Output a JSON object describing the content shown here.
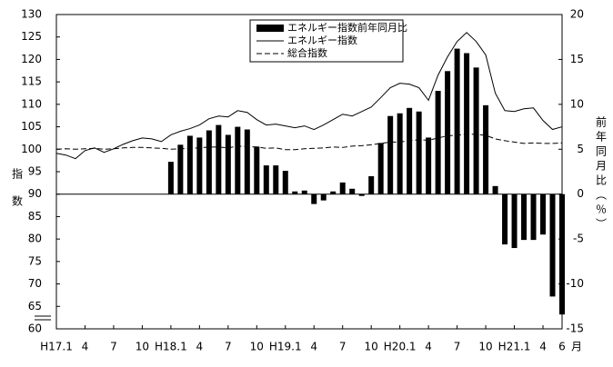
{
  "chart_data": {
    "type": "bar-line",
    "y_label": "指数",
    "y2_label": "前年同月比（％）",
    "x_unit": "月",
    "categories": [
      "H17.1",
      null,
      null,
      "4",
      null,
      null,
      "7",
      null,
      null,
      "10",
      null,
      null,
      "H18.1",
      null,
      null,
      "4",
      null,
      null,
      "7",
      null,
      null,
      "10",
      null,
      null,
      "H19.1",
      null,
      null,
      "4",
      null,
      null,
      "7",
      null,
      null,
      "10",
      null,
      null,
      "H20.1",
      null,
      null,
      "4",
      null,
      null,
      "7",
      null,
      null,
      "10",
      null,
      null,
      "H21.1",
      null,
      null,
      "4",
      null,
      "6"
    ],
    "ylim": [
      60,
      130
    ],
    "yticks": [
      60,
      65,
      70,
      75,
      80,
      85,
      90,
      95,
      100,
      105,
      110,
      115,
      120,
      125,
      130
    ],
    "y2lim": [
      -15,
      20
    ],
    "y2ticks": [
      -15,
      -10,
      -5,
      0,
      5,
      10,
      15,
      20
    ],
    "series": [
      {
        "name": "エネルギー指数前年同月比",
        "type": "bar",
        "axis": "y2",
        "color": "#000000",
        "values": [
          null,
          null,
          null,
          null,
          null,
          null,
          null,
          null,
          null,
          null,
          null,
          null,
          3.6,
          5.5,
          6.5,
          6.3,
          7.1,
          7.7,
          6.6,
          7.5,
          7.2,
          5.3,
          3.2,
          3.2,
          2.6,
          0.3,
          0.4,
          -1.1,
          -0.7,
          0.3,
          1.3,
          0.6,
          -0.2,
          2.0,
          5.7,
          8.7,
          9.0,
          9.6,
          9.2,
          6.3,
          11.5,
          13.7,
          16.2,
          15.7,
          14.1,
          9.9,
          0.9,
          -5.6,
          -6.0,
          -5.1,
          -5.1,
          -4.5,
          -11.4,
          -13.4
        ]
      },
      {
        "name": "エネルギー指数",
        "type": "line",
        "color": "#000000",
        "values": [
          99.1,
          98.7,
          97.9,
          99.7,
          100.3,
          99.3,
          100.1,
          101.1,
          101.9,
          102.5,
          102.3,
          101.7,
          103.2,
          104.0,
          104.6,
          105.4,
          106.8,
          107.4,
          107.2,
          108.6,
          108.2,
          106.6,
          105.4,
          105.6,
          105.2,
          104.8,
          105.2,
          104.4,
          105.4,
          106.6,
          107.8,
          107.4,
          108.4,
          109.4,
          111.5,
          113.7,
          114.7,
          114.5,
          113.7,
          110.9,
          116.5,
          120.6,
          124.0,
          126.0,
          124.0,
          121.0,
          112.5,
          108.6,
          108.4,
          109.0,
          109.2,
          106.4,
          104.4,
          105.0
        ]
      },
      {
        "name": "総合指数",
        "type": "dashed",
        "color": "#000000",
        "values": [
          100.0,
          100.1,
          100.0,
          100.1,
          100.2,
          100.0,
          100.1,
          100.3,
          100.4,
          100.4,
          100.3,
          100.2,
          100.0,
          100.1,
          100.2,
          100.3,
          100.5,
          100.5,
          100.3,
          100.7,
          100.6,
          100.5,
          100.2,
          100.3,
          99.9,
          99.9,
          100.1,
          100.2,
          100.3,
          100.5,
          100.4,
          100.7,
          100.8,
          101.0,
          101.3,
          101.6,
          101.6,
          101.9,
          102.1,
          102.0,
          102.5,
          103.0,
          103.1,
          103.4,
          103.3,
          103.1,
          102.3,
          101.9,
          101.6,
          101.3,
          101.4,
          101.3,
          101.3,
          101.4
        ]
      }
    ]
  }
}
